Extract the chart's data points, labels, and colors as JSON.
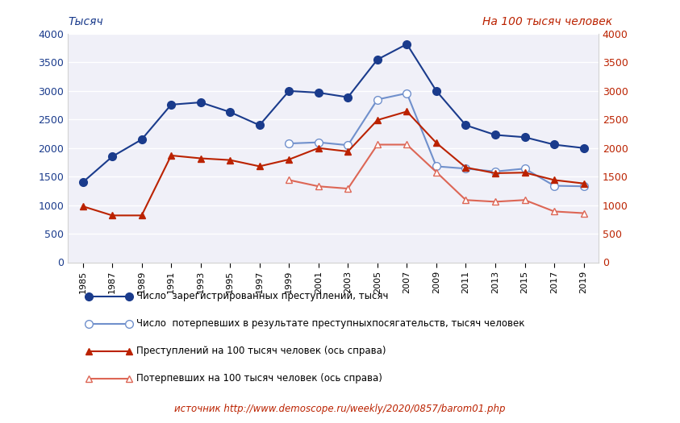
{
  "years": [
    1985,
    1987,
    1989,
    1991,
    1993,
    1995,
    1997,
    1999,
    2001,
    2003,
    2005,
    2007,
    2009,
    2011,
    2013,
    2015,
    2017,
    2019
  ],
  "crimes_thousands": [
    1400,
    1850,
    2150,
    2760,
    2800,
    2630,
    2400,
    3000,
    2970,
    2890,
    3550,
    3820,
    3000,
    2400,
    2230,
    2190,
    2060,
    2000
  ],
  "victims_thousands": [
    null,
    null,
    null,
    null,
    null,
    null,
    null,
    2080,
    2100,
    2050,
    2850,
    2960,
    1680,
    1640,
    1590,
    1640,
    1340,
    1330
  ],
  "crimes_per100k": [
    980,
    820,
    820,
    1870,
    1820,
    1790,
    1680,
    1800,
    2000,
    1940,
    2490,
    2640,
    2090,
    1660,
    1560,
    1570,
    1440,
    1380
  ],
  "victims_per100k": [
    null,
    null,
    null,
    null,
    null,
    null,
    null,
    1440,
    1330,
    1290,
    2060,
    2060,
    1580,
    1090,
    1060,
    1090,
    890,
    860
  ],
  "color_blue_dark": "#1a3b8c",
  "color_blue_light": "#7090cc",
  "color_red_dark": "#bb2200",
  "color_red_light": "#dd6655",
  "label_crimes": "Число  зарегистрированных преступлений, тысяч",
  "label_victims": "Число  потерпевших в результате преступныхпосягательств, тысяч человек",
  "label_crimes_per100k": "Преступлений на 100 тысяч человек (ось справа)",
  "label_victims_per100k": "Потерпевших на 100 тысяч человек (ось справа)",
  "ylabel_left": "Тысяч",
  "ylabel_right": "На 100 тысяч человек",
  "source_text": "источник http://www.demoscope.ru/weekly/2020/0857/barom01.php",
  "ylim": [
    0,
    4000
  ],
  "background_color": "#ffffff",
  "plot_bg_color": "#f0f0f8"
}
